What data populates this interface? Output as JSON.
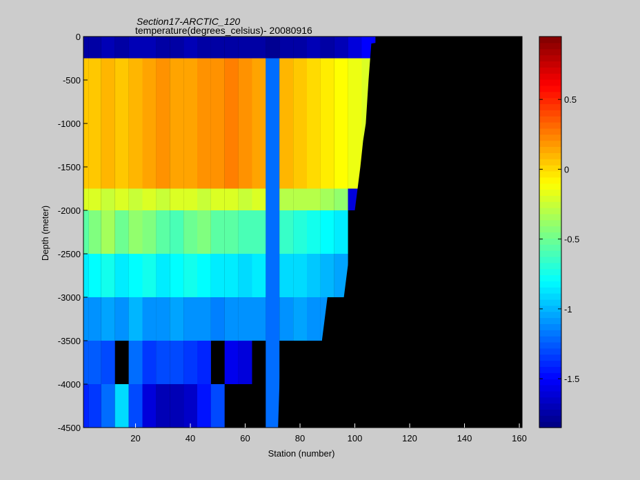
{
  "chart_data": {
    "type": "heatmap",
    "title": "Section17-ARCTIC_120",
    "subtitle": "temperature(degrees_celsius)- 20080916",
    "xlabel": "Station (number)",
    "ylabel": "Depth (meter)",
    "xlim": [
      1,
      161
    ],
    "ylim": [
      -4500,
      0
    ],
    "xticks": [
      20,
      40,
      60,
      80,
      100,
      120,
      140,
      160
    ],
    "yticks": [
      0,
      -500,
      -1000,
      -1500,
      -2000,
      -2500,
      -3000,
      -3500,
      -4000,
      -4500
    ],
    "colorbar": {
      "range": [
        -1.85,
        0.95
      ],
      "ticks": [
        0.5,
        0,
        -0.5,
        -1,
        -1.5
      ],
      "colormap": "jet"
    },
    "depth_bands": [
      {
        "top": 0,
        "bottom": -250
      },
      {
        "top": -250,
        "bottom": -500
      },
      {
        "top": -500,
        "bottom": -1000
      },
      {
        "top": -1000,
        "bottom": -1500
      },
      {
        "top": -1500,
        "bottom": -1750
      },
      {
        "top": -1750,
        "bottom": -2000
      },
      {
        "top": -2000,
        "bottom": -2500
      },
      {
        "top": -2500,
        "bottom": -3000
      },
      {
        "top": -3000,
        "bottom": -3500
      },
      {
        "top": -3500,
        "bottom": -4000
      },
      {
        "top": -4000,
        "bottom": -4500
      }
    ],
    "bathymetry": {
      "stations": [
        1,
        10,
        20,
        30,
        40,
        50,
        60,
        65,
        68,
        70,
        72,
        73,
        76,
        80,
        84,
        88,
        90,
        92,
        96,
        98,
        100,
        101,
        102,
        103,
        104,
        105,
        106,
        110,
        115,
        120,
        125,
        130,
        135,
        161
      ],
      "depth": [
        -4500,
        -4500,
        -4500,
        -4500,
        -4500,
        -4500,
        -4500,
        -4500,
        -4500,
        -4500,
        -4500,
        -3500,
        -3500,
        -3500,
        -3500,
        -3500,
        -3000,
        -3000,
        -3000,
        -2500,
        -2000,
        -1750,
        -1500,
        -1200,
        -1000,
        -500,
        -80,
        -60,
        -50,
        -30,
        -20,
        -10,
        0,
        0
      ]
    },
    "transect": {
      "stations": [
        1,
        5,
        10,
        15,
        20,
        25,
        30,
        35,
        40,
        45,
        50,
        55,
        60,
        65,
        70,
        75,
        80,
        85,
        90,
        95,
        100,
        105
      ],
      "surface_0_250": [
        -1.75,
        -1.75,
        -1.7,
        -1.75,
        -1.7,
        -1.7,
        -1.75,
        -1.75,
        -1.7,
        -1.75,
        -1.75,
        -1.75,
        -1.75,
        -1.75,
        -1.8,
        -1.75,
        -1.75,
        -1.7,
        -1.75,
        -1.7,
        -1.6,
        -1.5
      ],
      "layer_500_1500": [
        0.05,
        0.05,
        0.1,
        0.05,
        0.1,
        0.15,
        0.2,
        0.15,
        0.15,
        0.2,
        0.2,
        0.25,
        0.2,
        0.15,
        -1.2,
        0.1,
        0.05,
        0.0,
        -0.05,
        -0.1,
        -0.15,
        -0.2
      ],
      "layer_1750_2000": [
        -0.2,
        -0.2,
        -0.25,
        -0.2,
        -0.25,
        -0.2,
        -0.25,
        -0.2,
        -0.2,
        -0.25,
        -0.2,
        -0.2,
        -0.25,
        -0.2,
        -1.2,
        -0.3,
        -0.3,
        -0.3,
        -0.35,
        -0.4,
        -1.6,
        null
      ],
      "layer_2000_2500": [
        -0.55,
        -0.45,
        -0.35,
        -0.5,
        -0.4,
        -0.45,
        -0.55,
        -0.6,
        -0.5,
        -0.45,
        -0.55,
        -0.55,
        -0.6,
        -0.6,
        -1.2,
        -0.65,
        -0.7,
        -0.75,
        -0.8,
        -0.85,
        null,
        null
      ],
      "layer_2500_3000": [
        -0.85,
        -0.8,
        -0.75,
        -0.85,
        -0.8,
        -0.75,
        -0.85,
        -0.8,
        -0.75,
        -0.8,
        -0.85,
        -0.85,
        -0.9,
        -0.85,
        -1.2,
        -0.9,
        -0.9,
        -0.95,
        -1.0,
        -1.05,
        null,
        null
      ],
      "layer_3000_3500": [
        -1.1,
        -1.1,
        -1.05,
        -1.1,
        -1.0,
        -1.1,
        -1.1,
        -1.05,
        -1.1,
        -1.1,
        -1.15,
        -1.1,
        -1.1,
        -1.1,
        -1.2,
        -1.1,
        -1.05,
        -1.1,
        -1.1,
        null,
        null,
        null
      ],
      "layer_3500_4000": [
        -1.25,
        -1.25,
        -1.3,
        null,
        -1.2,
        -1.35,
        -1.3,
        -1.3,
        -1.35,
        -1.4,
        null,
        -1.55,
        -1.6,
        null,
        -1.2,
        null,
        null,
        null,
        null,
        null,
        null,
        null
      ],
      "layer_4000_4500": [
        -1.4,
        -1.35,
        -1.2,
        -0.9,
        -1.3,
        -1.6,
        -1.7,
        -1.7,
        -1.65,
        -1.45,
        -1.3,
        null,
        null,
        null,
        -1.2,
        null,
        null,
        null,
        null,
        null,
        null,
        null
      ]
    }
  }
}
